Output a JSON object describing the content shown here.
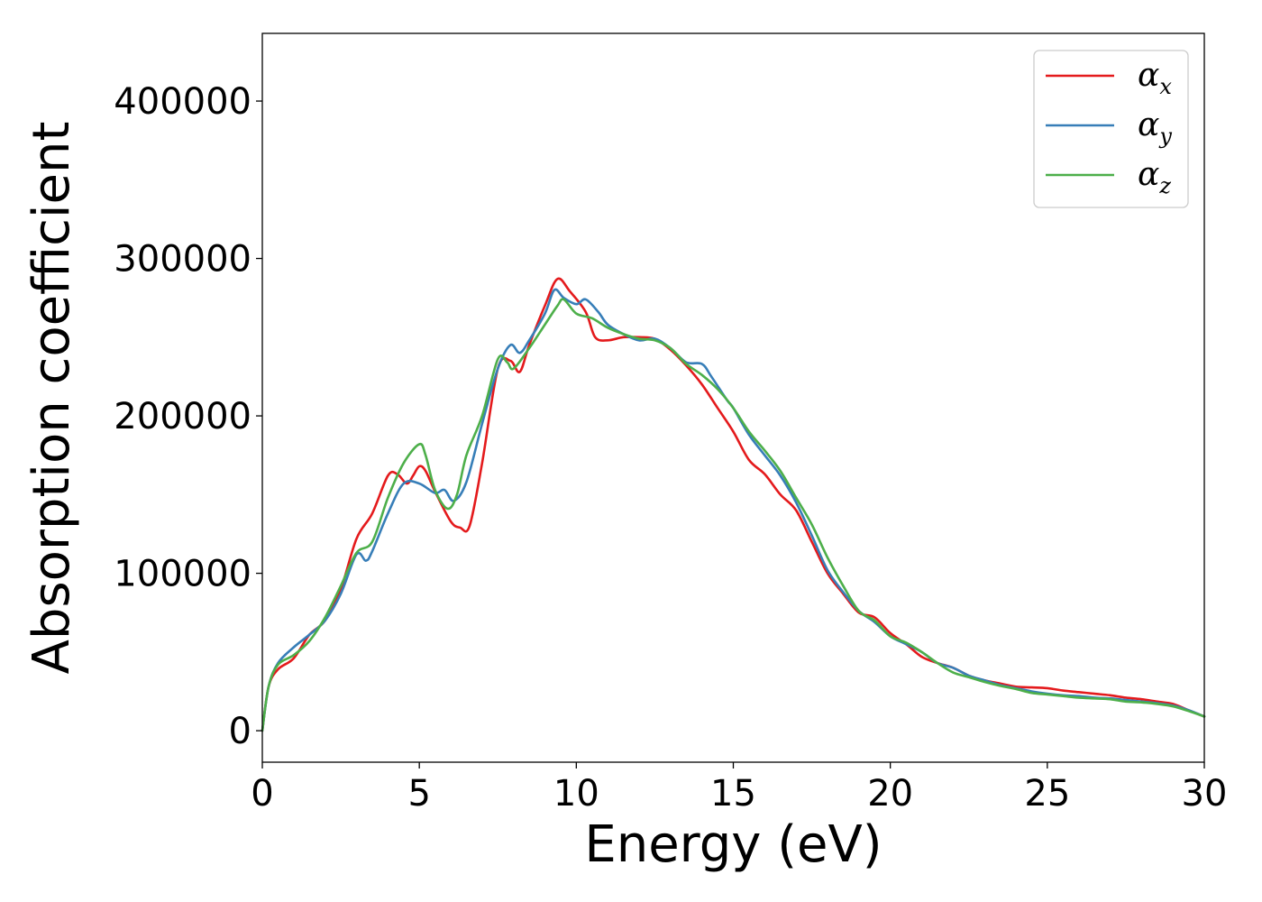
{
  "chart_data": {
    "type": "line",
    "xlabel": "Energy (eV)",
    "ylabel": "Absorption coefficient",
    "xlim": [
      0,
      30
    ],
    "ylim": [
      -20000,
      443000
    ],
    "xticks": [
      0,
      5,
      10,
      15,
      20,
      25,
      30
    ],
    "yticks": [
      0,
      100000,
      200000,
      300000,
      400000
    ],
    "grid": false,
    "legend_position": "top-right",
    "series": [
      {
        "name": "α",
        "subscript": "x",
        "color": "#e41a1c",
        "x": [
          0,
          0.2,
          0.5,
          1,
          1.5,
          2,
          2.5,
          3,
          3.5,
          4,
          4.3,
          4.6,
          4.8,
          5.0,
          5.2,
          5.5,
          6.0,
          6.3,
          6.6,
          7.0,
          7.5,
          7.9,
          8.2,
          8.5,
          9.0,
          9.4,
          9.8,
          10.3,
          10.6,
          11.0,
          11.5,
          12.0,
          12.5,
          13.0,
          13.5,
          14.0,
          14.5,
          15.0,
          15.5,
          16.0,
          16.5,
          17.0,
          17.5,
          18.0,
          18.5,
          19.0,
          19.5,
          20.0,
          20.5,
          21.0,
          21.5,
          22.0,
          22.5,
          23.0,
          23.5,
          24.0,
          24.5,
          25.0,
          25.5,
          26.0,
          26.5,
          27.0,
          27.5,
          28.0,
          28.5,
          29.0,
          29.5,
          30.0
        ],
        "y": [
          0,
          28000,
          39000,
          46000,
          61000,
          70000,
          90000,
          122000,
          138000,
          162000,
          163000,
          157000,
          162000,
          168000,
          165000,
          152000,
          133000,
          129000,
          130000,
          170000,
          230000,
          235000,
          228000,
          245000,
          270000,
          287000,
          279000,
          266000,
          250000,
          248000,
          250000,
          250000,
          249000,
          242000,
          232000,
          220000,
          205000,
          190000,
          172000,
          163000,
          150000,
          140000,
          120000,
          100000,
          87000,
          75000,
          72000,
          62000,
          55000,
          47000,
          43000,
          40000,
          35000,
          32000,
          30000,
          28000,
          27500,
          27000,
          25500,
          24500,
          23500,
          22500,
          21000,
          20000,
          18500,
          17000,
          13000,
          9000
        ]
      },
      {
        "name": "α",
        "subscript": "y",
        "color": "#377eb8",
        "x": [
          0,
          0.2,
          0.5,
          1,
          1.5,
          2,
          2.5,
          3,
          3.3,
          3.5,
          4,
          4.5,
          5.0,
          5.5,
          5.8,
          6.1,
          6.5,
          7.0,
          7.5,
          7.9,
          8.2,
          8.5,
          9.0,
          9.3,
          9.6,
          10.0,
          10.3,
          10.7,
          11.0,
          11.5,
          12.0,
          12.5,
          13.0,
          13.5,
          14.0,
          14.3,
          14.8,
          15.0,
          15.5,
          16.0,
          16.5,
          17.0,
          17.5,
          18.0,
          18.5,
          19.0,
          19.5,
          20.0,
          20.5,
          21.0,
          21.5,
          22.0,
          22.5,
          23.0,
          23.5,
          24.0,
          24.5,
          25.0,
          25.5,
          26.0,
          26.5,
          27.0,
          27.5,
          28.0,
          28.5,
          29.0,
          29.5,
          30.0
        ],
        "y": [
          0,
          28000,
          43000,
          53000,
          61000,
          70000,
          87000,
          112000,
          108000,
          114000,
          138000,
          157000,
          157000,
          151000,
          153000,
          146000,
          158000,
          195000,
          230000,
          245000,
          240000,
          248000,
          265000,
          280000,
          275000,
          271000,
          274000,
          266000,
          258000,
          252000,
          248000,
          249000,
          243000,
          234000,
          233000,
          225000,
          210000,
          205000,
          188000,
          175000,
          162000,
          145000,
          124000,
          102000,
          88000,
          76000,
          69000,
          60000,
          55000,
          50000,
          43000,
          40000,
          35000,
          32000,
          29000,
          27000,
          25000,
          23500,
          22500,
          22000,
          21000,
          20500,
          19500,
          18500,
          17500,
          16000,
          13000,
          9000
        ]
      },
      {
        "name": "α",
        "subscript": "z",
        "color": "#4daf4a",
        "x": [
          0,
          0.2,
          0.5,
          1,
          1.5,
          2,
          2.5,
          3,
          3.5,
          4,
          4.5,
          5.0,
          5.2,
          5.5,
          5.9,
          6.2,
          6.5,
          7.0,
          7.5,
          7.8,
          8.0,
          8.5,
          9.0,
          9.4,
          9.6,
          10.0,
          10.5,
          11.0,
          11.5,
          12.0,
          12.5,
          13.0,
          13.5,
          14.0,
          14.5,
          15.0,
          15.5,
          16.0,
          16.5,
          17.0,
          17.5,
          18.0,
          18.5,
          19.0,
          19.5,
          20.0,
          20.5,
          21.0,
          21.5,
          22.0,
          22.5,
          23.0,
          23.5,
          24.0,
          24.5,
          25.0,
          25.5,
          26.0,
          26.5,
          27.0,
          27.5,
          28.0,
          28.5,
          29.0,
          29.5,
          30.0
        ],
        "y": [
          0,
          28000,
          42000,
          48000,
          57000,
          72000,
          92000,
          113000,
          120000,
          148000,
          170000,
          182000,
          175000,
          153000,
          141000,
          150000,
          175000,
          200000,
          236000,
          234000,
          230000,
          243000,
          258000,
          270000,
          274000,
          265000,
          262000,
          256000,
          252000,
          249000,
          248000,
          243000,
          233000,
          226000,
          217000,
          205000,
          190000,
          178000,
          165000,
          148000,
          131000,
          110000,
          92000,
          76000,
          70000,
          60000,
          56000,
          50000,
          43000,
          37000,
          34000,
          31000,
          28500,
          26500,
          24000,
          23000,
          22000,
          21000,
          20500,
          20000,
          18500,
          18000,
          17000,
          15500,
          12500,
          9000
        ]
      }
    ]
  }
}
